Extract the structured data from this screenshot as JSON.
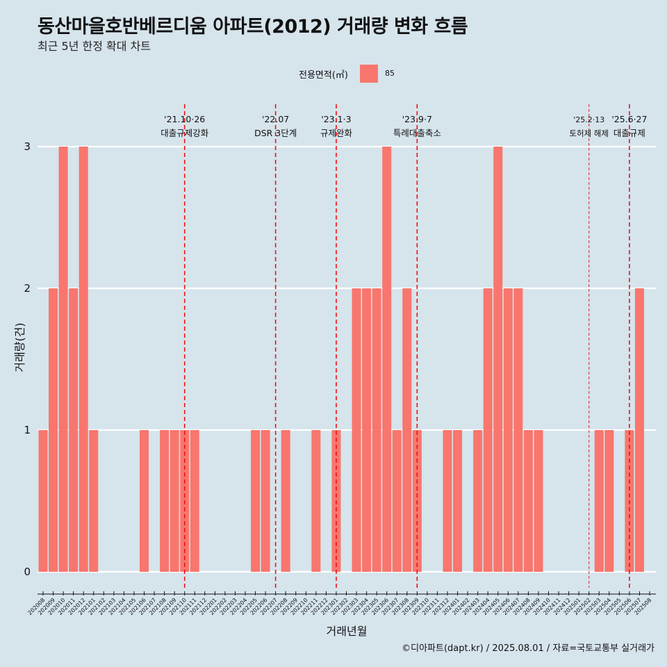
{
  "title": "동산마을호반베르디움 아파트(2012) 거래량 변화 흐름",
  "subtitle": "최근 5년 한정 확대 차트",
  "caption": "©디아파트(dapt.kr) / 2025.08.01 / 자료=국토교통부 실거래가",
  "legend": {
    "title": "전용면적(㎡)",
    "label": "85",
    "color": "#f8766d"
  },
  "chart_data": {
    "type": "bar",
    "xlabel": "거래년월",
    "ylabel": "거래량(건)",
    "ylim": [
      0,
      3
    ],
    "yticks": [
      0,
      1,
      2,
      3
    ],
    "bar_color": "#f8766d",
    "categories": [
      "202008",
      "202009",
      "202010",
      "202011",
      "202012",
      "202101",
      "202102",
      "202103",
      "202104",
      "202105",
      "202106",
      "202107",
      "202108",
      "202109",
      "202110",
      "202111",
      "202112",
      "202201",
      "202202",
      "202203",
      "202204",
      "202205",
      "202206",
      "202207",
      "202208",
      "202209",
      "202210",
      "202211",
      "202212",
      "202301",
      "202302",
      "202303",
      "202304",
      "202305",
      "202306",
      "202307",
      "202308",
      "202309",
      "202310",
      "202311",
      "202312",
      "202401",
      "202402",
      "202403",
      "202404",
      "202405",
      "202406",
      "202407",
      "202408",
      "202409",
      "202410",
      "202411",
      "202412",
      "202501",
      "202502",
      "202503",
      "202504",
      "202505",
      "202506",
      "202507",
      "202508"
    ],
    "values": [
      1,
      2,
      3,
      2,
      3,
      1,
      0,
      0,
      0,
      0,
      1,
      0,
      1,
      1,
      1,
      1,
      0,
      0,
      0,
      0,
      0,
      1,
      1,
      0,
      1,
      0,
      0,
      1,
      0,
      1,
      0,
      2,
      2,
      2,
      3,
      1,
      2,
      1,
      0,
      0,
      1,
      1,
      0,
      1,
      2,
      3,
      2,
      2,
      1,
      1,
      0,
      0,
      0,
      0,
      0,
      1,
      1,
      0,
      1,
      2,
      0
    ],
    "events": [
      {
        "date_label": "'21.10·26",
        "text": "대출규제강화",
        "at": "202110",
        "style": "dashed"
      },
      {
        "date_label": "'22.07",
        "text": "DSR 3단계",
        "at": "202207",
        "style": "dashed"
      },
      {
        "date_label": "'23.1·3",
        "text": "규제완화",
        "at": "202301",
        "style": "dashed"
      },
      {
        "date_label": "'23.9·7",
        "text": "특례대출축소",
        "at": "202309",
        "style": "dashed"
      },
      {
        "date_label": "'25.2·13",
        "text": "토허제 해제",
        "at": "202502",
        "style": "dotted"
      },
      {
        "date_label": "'25.6·27",
        "text": "대출규제",
        "at": "202506",
        "style": "dashed"
      }
    ]
  }
}
